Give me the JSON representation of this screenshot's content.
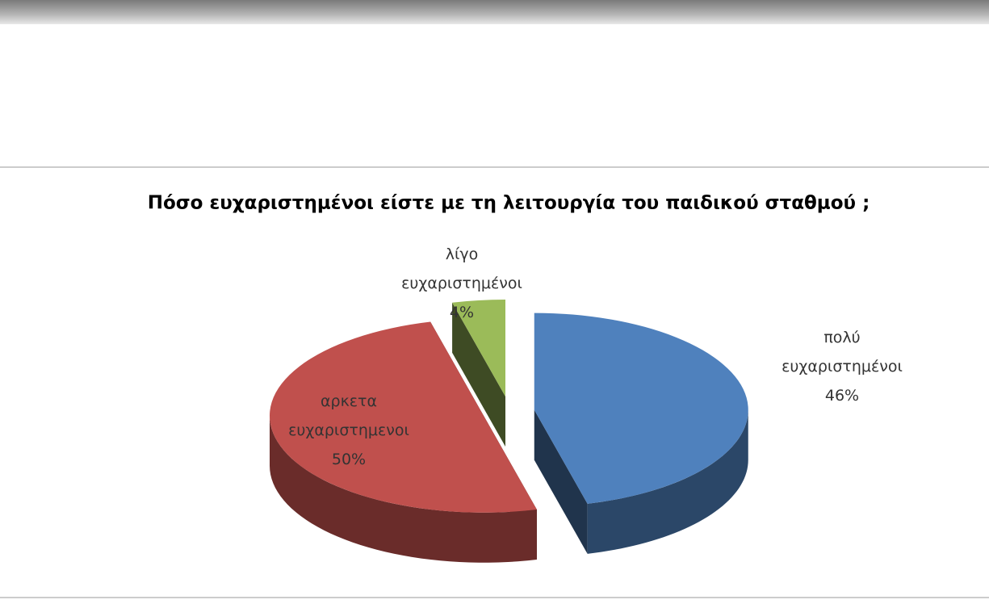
{
  "chart_data": {
    "type": "pie",
    "title": "Πόσο ευχαριστημένοι είστε με τη λειτουργία του παιδικού σταθμού ;",
    "categories": [
      "πολύ ευχαριστημένοι",
      "αρκετα ευχαριστημενοι",
      "λίγο ευχαριστημένοι"
    ],
    "values": [
      46,
      50,
      4
    ],
    "value_labels": [
      "46%",
      "50%",
      "4%"
    ],
    "colors": [
      "#4f81bd",
      "#c0504d",
      "#9bbb59"
    ]
  }
}
